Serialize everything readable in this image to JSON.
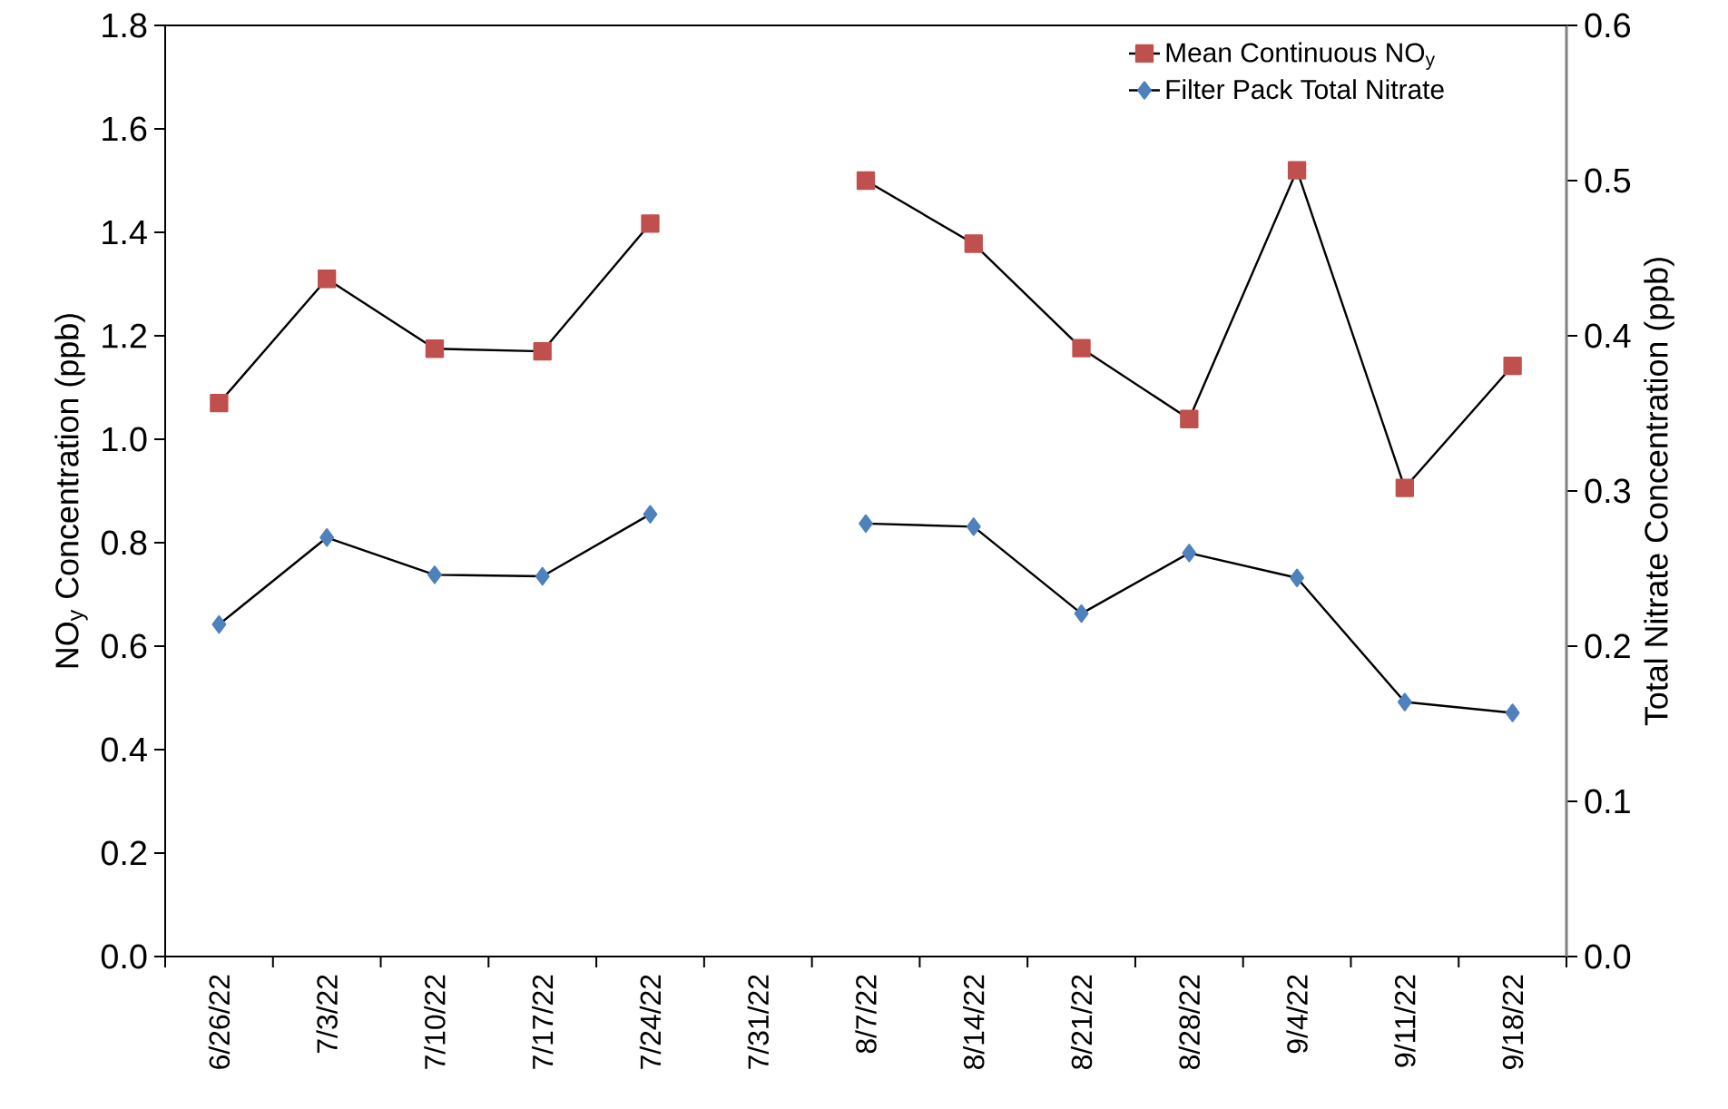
{
  "chart_data": {
    "type": "line",
    "categories": [
      "6/26/22",
      "7/3/22",
      "7/10/22",
      "7/17/22",
      "7/24/22",
      "7/31/22",
      "8/7/22",
      "8/14/22",
      "8/21/22",
      "8/28/22",
      "9/4/22",
      "9/11/22",
      "9/18/22"
    ],
    "series": [
      {
        "name": "Mean Continuous NO$_{y}$",
        "color": "#c0504d",
        "marker": "square",
        "values": [
          1.07,
          1.31,
          1.175,
          1.17,
          1.417,
          null,
          1.5,
          1.378,
          1.176,
          1.039,
          1.52,
          0.906,
          1.142
        ]
      },
      {
        "name": "Filter Pack Total Nitrate",
        "color": "#4f81bd",
        "marker": "diamond",
        "axis": "y2",
        "values": [
          0.214,
          0.27,
          0.246,
          0.245,
          0.285,
          null,
          0.279,
          0.277,
          0.221,
          0.26,
          0.244,
          0.164,
          0.157
        ]
      }
    ],
    "ylabel": "NO$_{y}$ Concentration (ppb)",
    "y2label": "Total Nitrate Concentration (ppb)",
    "ylim": [
      0,
      1.8
    ],
    "yticks": [
      {
        "value": 0,
        "label": "0.0"
      },
      {
        "value": 0.2,
        "label": "0.2"
      },
      {
        "value": 0.4,
        "label": "0.4"
      },
      {
        "value": 0.6,
        "label": "0.6"
      },
      {
        "value": 0.8,
        "label": "0.8"
      },
      {
        "value": 1.0,
        "label": "1.0"
      },
      {
        "value": 1.2,
        "label": "1.2"
      },
      {
        "value": 1.4,
        "label": "1.4"
      },
      {
        "value": 1.6,
        "label": "1.6"
      },
      {
        "value": 1.8,
        "label": "1.8"
      }
    ],
    "y2lim": [
      0,
      0.6
    ],
    "y2ticks": [
      {
        "value": 0,
        "label": "0.0"
      },
      {
        "value": 0.1,
        "label": "0.1"
      },
      {
        "value": 0.2,
        "label": "0.2"
      },
      {
        "value": 0.3,
        "label": "0.3"
      },
      {
        "value": 0.4,
        "label": "0.4"
      },
      {
        "value": 0.5,
        "label": "0.5"
      },
      {
        "value": 0.6,
        "label": "0.6"
      }
    ],
    "grid": false,
    "legend": "top right"
  }
}
